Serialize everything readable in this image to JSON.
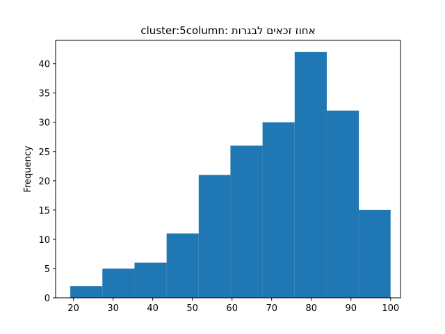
{
  "chart_data": {
    "type": "bar",
    "title": "cluster:5column:    אחוז זכאים לבגרות",
    "xlabel": "",
    "ylabel": "Frequency",
    "xlim": [
      15.5,
      102.5
    ],
    "ylim": [
      0,
      44
    ],
    "xticks": [
      20,
      30,
      40,
      50,
      60,
      70,
      80,
      90,
      100
    ],
    "yticks": [
      0,
      5,
      10,
      15,
      20,
      25,
      30,
      35,
      40
    ],
    "bin_edges": [
      19.2,
      27.3,
      35.4,
      43.5,
      51.6,
      59.6,
      67.7,
      75.8,
      83.9,
      92.0,
      100.0
    ],
    "values": [
      2,
      5,
      6,
      11,
      21,
      26,
      30,
      42,
      32,
      15
    ],
    "bar_color": "#1f77b4",
    "grid": false,
    "legend": "none"
  }
}
